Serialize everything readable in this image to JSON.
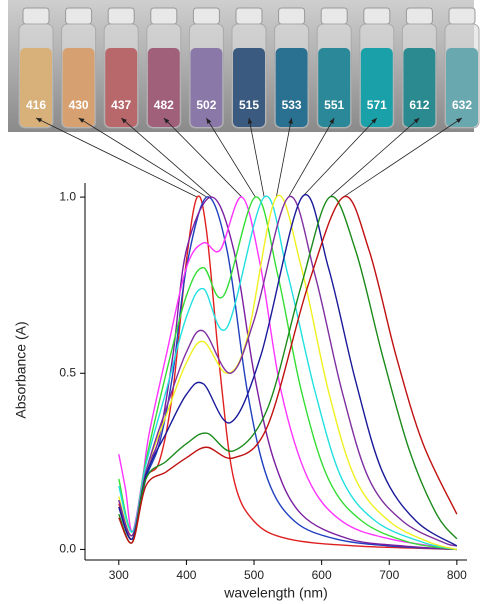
{
  "photo": {
    "labels": [
      "416",
      "430",
      "437",
      "482",
      "502",
      "515",
      "533",
      "551",
      "571",
      "612",
      "632"
    ]
  },
  "chart_data": {
    "type": "line",
    "xlabel": "wavelength (nm)",
    "ylabel": "Absorbance (A)",
    "xlim": [
      250,
      815
    ],
    "ylim": [
      -0.03,
      1.04
    ],
    "xticks": [
      300,
      400,
      500,
      600,
      700,
      800
    ],
    "yticks": [
      {
        "value": 0,
        "label": "0.0"
      },
      0.5,
      {
        "value": 1,
        "label": "1.0"
      }
    ],
    "series": [
      {
        "color": "#e02020",
        "x": [
          300,
          320,
          340,
          360,
          380,
          400,
          416,
          430,
          450,
          470,
          500,
          550,
          650,
          800
        ],
        "values": [
          0.13,
          0.03,
          0.2,
          0.25,
          0.45,
          0.82,
          1.0,
          0.9,
          0.5,
          0.2,
          0.08,
          0.03,
          0.01,
          0.0
        ]
      },
      {
        "color": "#1f3fbf",
        "x": [
          300,
          320,
          340,
          360,
          380,
          400,
          430,
          460,
          490,
          520,
          560,
          620,
          700,
          800
        ],
        "values": [
          0.12,
          0.03,
          0.2,
          0.3,
          0.5,
          0.8,
          1.0,
          0.85,
          0.45,
          0.2,
          0.08,
          0.03,
          0.01,
          0.0
        ]
      },
      {
        "color": "#7a1fa0",
        "x": [
          300,
          320,
          340,
          360,
          380,
          400,
          437,
          470,
          500,
          530,
          570,
          640,
          720,
          800
        ],
        "values": [
          0.14,
          0.04,
          0.22,
          0.32,
          0.55,
          0.85,
          1.0,
          0.85,
          0.5,
          0.25,
          0.1,
          0.03,
          0.01,
          0.0
        ]
      },
      {
        "color": "#ff33ff",
        "x": [
          300,
          310,
          320,
          335,
          345,
          370,
          400,
          425,
          450,
          482,
          510,
          540,
          580,
          630,
          700,
          800
        ],
        "values": [
          0.27,
          0.17,
          0.05,
          0.2,
          0.33,
          0.55,
          0.8,
          0.87,
          0.85,
          1.0,
          0.8,
          0.45,
          0.2,
          0.08,
          0.03,
          0.0
        ]
      },
      {
        "color": "#33dd33",
        "x": [
          300,
          320,
          340,
          370,
          400,
          425,
          455,
          502,
          535,
          570,
          610,
          660,
          730,
          800
        ],
        "values": [
          0.2,
          0.05,
          0.25,
          0.5,
          0.72,
          0.8,
          0.72,
          1.0,
          0.78,
          0.45,
          0.2,
          0.08,
          0.02,
          0.0
        ]
      },
      {
        "color": "#22e0e0",
        "x": [
          300,
          320,
          340,
          370,
          400,
          425,
          460,
          515,
          550,
          590,
          630,
          680,
          750,
          800
        ],
        "values": [
          0.18,
          0.05,
          0.24,
          0.45,
          0.66,
          0.74,
          0.63,
          1.0,
          0.78,
          0.45,
          0.2,
          0.08,
          0.02,
          0.0
        ]
      },
      {
        "color": "#f0f020",
        "x": [
          300,
          320,
          340,
          370,
          400,
          425,
          460,
          490,
          533,
          570,
          610,
          650,
          700,
          760,
          800
        ],
        "values": [
          0.15,
          0.04,
          0.22,
          0.38,
          0.53,
          0.59,
          0.5,
          0.6,
          1.0,
          0.8,
          0.45,
          0.2,
          0.08,
          0.02,
          0.0
        ]
      },
      {
        "color": "#7f2f9f",
        "x": [
          300,
          320,
          340,
          370,
          400,
          425,
          465,
          500,
          551,
          590,
          630,
          670,
          720,
          780,
          800
        ],
        "values": [
          0.14,
          0.04,
          0.22,
          0.4,
          0.56,
          0.62,
          0.5,
          0.65,
          1.0,
          0.78,
          0.45,
          0.2,
          0.08,
          0.02,
          0.01
        ]
      },
      {
        "color": "#1a1a9a",
        "x": [
          300,
          320,
          340,
          370,
          400,
          425,
          465,
          510,
          571,
          610,
          650,
          690,
          740,
          800
        ],
        "values": [
          0.12,
          0.03,
          0.21,
          0.33,
          0.44,
          0.47,
          0.36,
          0.55,
          1.0,
          0.8,
          0.48,
          0.22,
          0.08,
          0.01
        ]
      },
      {
        "color": "#1a8a1a",
        "x": [
          300,
          320,
          340,
          370,
          400,
          430,
          470,
          520,
          570,
          612,
          650,
          690,
          730,
          770,
          800
        ],
        "values": [
          0.1,
          0.02,
          0.2,
          0.25,
          0.3,
          0.33,
          0.28,
          0.4,
          0.75,
          1.0,
          0.85,
          0.55,
          0.28,
          0.1,
          0.03
        ]
      },
      {
        "color": "#c01010",
        "x": [
          300,
          320,
          340,
          370,
          400,
          430,
          470,
          520,
          580,
          632,
          670,
          710,
          750,
          800
        ],
        "values": [
          0.09,
          0.02,
          0.18,
          0.22,
          0.26,
          0.29,
          0.26,
          0.35,
          0.75,
          1.0,
          0.85,
          0.55,
          0.3,
          0.1
        ]
      }
    ]
  }
}
